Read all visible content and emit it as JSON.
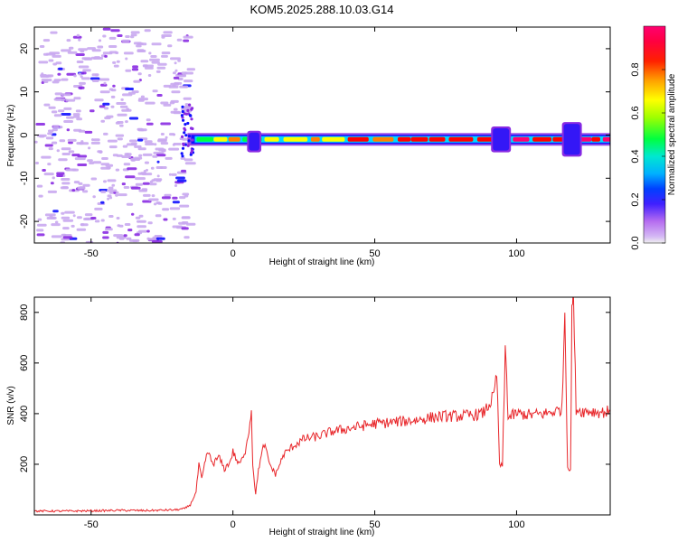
{
  "title": "KOM5.2025.288.10.03.G14",
  "chart_data": [
    {
      "type": "heatmap",
      "name": "spectrogram",
      "title": "KOM5.2025.288.10.03.G14",
      "xlabel": "Height of straight line (km)",
      "ylabel": "Frequency (Hz)",
      "xlim": [
        -70,
        133
      ],
      "ylim": [
        -25,
        25
      ],
      "xticks": [
        -50,
        0,
        50,
        100
      ],
      "yticks": [
        -20,
        -10,
        0,
        10,
        20
      ],
      "noise_region_x": [
        -70,
        -16
      ],
      "signal_start_x": -16,
      "signal_freq_hz": -1,
      "signal_bursts": [
        {
          "x_from": 5,
          "x_to": 10,
          "f_from": -4,
          "f_to": 1
        },
        {
          "x_from": 91,
          "x_to": 98,
          "f_from": -4,
          "f_to": 2
        },
        {
          "x_from": 116,
          "x_to": 123,
          "f_from": -5,
          "f_to": 3
        }
      ],
      "colorbar": {
        "label": "Normalized spectral amplitude",
        "min": 0.0,
        "max": 1.0,
        "ticks": [
          "0.0",
          "0.2",
          "0.4",
          "0.6",
          "0.8"
        ],
        "ticks_values": [
          0.0,
          0.2,
          0.4,
          0.6,
          0.8
        ]
      },
      "colormap": [
        "#f0f0f0",
        "#c9a8f0",
        "#8a2be2",
        "#1010ff",
        "#00d8ff",
        "#00ff40",
        "#ffff00",
        "#ff8000",
        "#ff0000",
        "#ff0070"
      ]
    },
    {
      "type": "line",
      "name": "snr",
      "xlabel": "Height of straight line (km)",
      "ylabel": "SNR (v/v)",
      "xlim": [
        -70,
        133
      ],
      "ylim": [
        0,
        860
      ],
      "xticks": [
        -50,
        0,
        50,
        100
      ],
      "yticks": [
        200,
        400,
        600,
        800
      ],
      "line_color": "#e8262a",
      "series": [
        {
          "name": "SNR",
          "x": [
            -70,
            -60,
            -50,
            -40,
            -30,
            -20,
            -17,
            -15,
            -13,
            -12,
            -11,
            -9,
            -7,
            -5,
            -3,
            -1,
            0,
            2,
            4,
            5,
            6,
            6.5,
            7,
            8,
            9,
            11,
            13,
            15,
            18,
            21,
            25,
            30,
            35,
            40,
            45,
            50,
            55,
            60,
            65,
            70,
            75,
            80,
            85,
            88,
            90,
            92,
            93,
            94,
            95,
            96,
            96.5,
            97,
            98,
            100,
            105,
            110,
            114,
            116,
            117,
            117.5,
            118,
            119,
            119.5,
            120,
            121,
            123,
            126,
            130,
            133
          ],
          "y": [
            15,
            15,
            16,
            18,
            17,
            20,
            25,
            40,
            90,
            200,
            140,
            250,
            200,
            230,
            180,
            210,
            250,
            200,
            230,
            300,
            360,
            420,
            200,
            80,
            180,
            280,
            200,
            160,
            240,
            270,
            300,
            310,
            330,
            340,
            350,
            360,
            365,
            370,
            375,
            385,
            390,
            390,
            395,
            400,
            430,
            470,
            560,
            200,
            190,
            650,
            550,
            380,
            390,
            400,
            395,
            400,
            410,
            420,
            800,
            500,
            190,
            170,
            820,
            860,
            420,
            410,
            410,
            405,
            410
          ]
        }
      ]
    }
  ]
}
